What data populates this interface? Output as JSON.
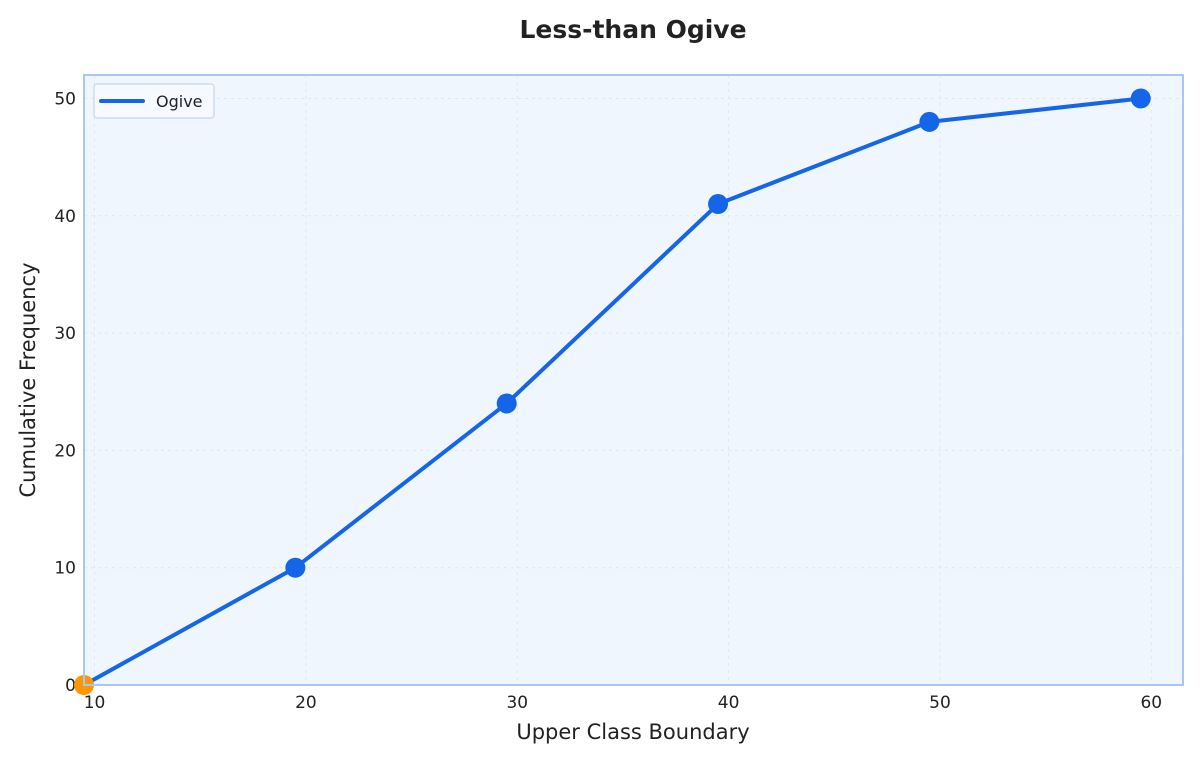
{
  "chart_data": {
    "type": "line",
    "title": "Less-than Ogive",
    "xlabel": "Upper Class Boundary",
    "ylabel": "Cumulative Frequency",
    "xlim": [
      9.5,
      61.5
    ],
    "ylim": [
      0,
      52
    ],
    "xticks": [
      10,
      20,
      30,
      40,
      50,
      60
    ],
    "yticks": [
      0,
      10,
      20,
      30,
      40,
      50
    ],
    "grid": true,
    "legend": {
      "position": "top-left",
      "entries": [
        "Ogive"
      ]
    },
    "series": [
      {
        "name": "Ogive",
        "color": "#1565e8",
        "x": [
          9.5,
          19.5,
          29.5,
          39.5,
          49.5,
          59.5
        ],
        "y": [
          0,
          10,
          24,
          41,
          48,
          50
        ]
      }
    ],
    "start_point": {
      "x": 9.5,
      "y": 0,
      "color": "#ff9800"
    },
    "colors": {
      "plot_background": "#eff6fe",
      "plot_border": "#a9c6f5",
      "grid": "#dde6f3"
    }
  }
}
